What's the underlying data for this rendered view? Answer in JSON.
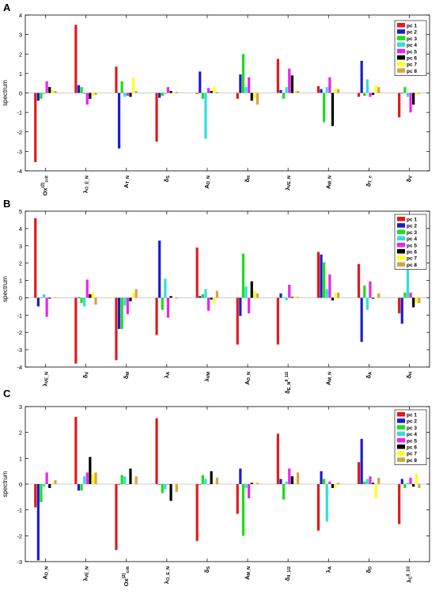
{
  "figure": {
    "panels": [
      "A",
      "B",
      "C"
    ],
    "ylabel": "spectrum"
  },
  "legend": {
    "entries": [
      "pc 1",
      "pc 2",
      "pc 3",
      "pc 4",
      "pc 5",
      "pc 6",
      "pc 7",
      "pc 8"
    ],
    "colors": [
      "#dd1c1c",
      "#1c1ccc",
      "#1cdd1c",
      "#33dddd",
      "#ee22ee",
      "#000000",
      "#ffff1c",
      "#d9a340"
    ]
  },
  "chart_data": [
    {
      "panel": "A",
      "type": "bar",
      "ylabel": "spectrum",
      "ylim": [
        -4,
        4
      ],
      "yticks": [
        -4,
        -3,
        -2,
        -1,
        0,
        1,
        2,
        3,
        4
      ],
      "grid": false,
      "legend_position": "top-right",
      "categories": [
        {
          "base": "Ox",
          "sub": "crit",
          "sup": "(2)"
        },
        {
          "base": "λ",
          "sub": "O_E_N"
        },
        {
          "base": "A",
          "sub": "T_N"
        },
        {
          "base": "δ",
          "sub": "S"
        },
        {
          "base": "A",
          "sub": "D_N"
        },
        {
          "base": "δ",
          "sub": "H"
        },
        {
          "base": "λ",
          "sub": "VE_N"
        },
        {
          "base": "A",
          "sub": "M_N"
        },
        {
          "base": "δ",
          "sub": "T_e"
        },
        {
          "base": "δ",
          "sub": "V"
        }
      ],
      "series": [
        {
          "name": "pc 1",
          "values": [
            -3.55,
            3.5,
            1.35,
            -2.5,
            -0.05,
            -0.3,
            1.75,
            0.35,
            -0.2,
            -1.25
          ]
        },
        {
          "name": "pc 2",
          "values": [
            -0.4,
            0.4,
            -2.85,
            -0.25,
            1.1,
            0.95,
            0.15,
            0.2,
            1.65,
            0.0
          ]
        },
        {
          "name": "pc 3",
          "values": [
            -0.3,
            0.3,
            0.6,
            -0.15,
            -0.3,
            2.0,
            -0.3,
            -1.5,
            -0.15,
            0.3
          ]
        },
        {
          "name": "pc 4",
          "values": [
            -0.05,
            -0.05,
            -0.2,
            -0.05,
            -2.35,
            0.3,
            0.3,
            0.3,
            0.7,
            -0.2
          ]
        },
        {
          "name": "pc 5",
          "values": [
            0.6,
            -0.6,
            -0.15,
            0.3,
            0.25,
            0.8,
            1.25,
            0.8,
            -0.2,
            -1.0
          ]
        },
        {
          "name": "pc 6",
          "values": [
            0.3,
            -0.3,
            -0.2,
            0.1,
            0.1,
            -0.4,
            0.9,
            -1.7,
            -0.1,
            -0.6
          ]
        },
        {
          "name": "pc 7",
          "values": [
            0.15,
            -0.15,
            0.8,
            0.05,
            0.35,
            -0.3,
            0.1,
            0.25,
            0.4,
            -0.1
          ]
        },
        {
          "name": "pc 8",
          "values": [
            0.1,
            -0.1,
            0.1,
            0.05,
            0.05,
            -0.6,
            0.1,
            0.2,
            0.3,
            -0.05
          ]
        }
      ]
    },
    {
      "panel": "B",
      "type": "bar",
      "ylabel": "spectrum",
      "ylim": [
        -4,
        5
      ],
      "yticks": [
        -4,
        -3,
        -2,
        -1,
        0,
        1,
        2,
        3,
        4,
        5
      ],
      "grid": false,
      "legend_position": "top-right",
      "categories": [
        {
          "base": "λ",
          "sub": "VE_N"
        },
        {
          "base": "δ",
          "sub": "V"
        },
        {
          "base": "δ",
          "sub": "M"
        },
        {
          "base": "λ",
          "sub": "A"
        },
        {
          "base": "λ",
          "sub": "VM"
        },
        {
          "base": "A",
          "sub": "D_N"
        },
        {
          "base": "δ",
          "sub": "E_N",
          "tail": "II_1/2"
        },
        {
          "base": "A",
          "sub": "M_N"
        },
        {
          "base": "δ",
          "sub": "A"
        },
        {
          "base": "δ",
          "sub": "H"
        }
      ],
      "series": [
        {
          "name": "pc 1",
          "values": [
            4.6,
            -3.8,
            -3.6,
            -2.15,
            2.9,
            -2.7,
            -2.7,
            2.65,
            1.95,
            -0.9
          ]
        },
        {
          "name": "pc 2",
          "values": [
            -0.5,
            0.0,
            -1.8,
            3.3,
            0.1,
            -1.05,
            0.25,
            2.5,
            -2.55,
            -1.5
          ]
        },
        {
          "name": "pc 3",
          "values": [
            0.0,
            -0.3,
            -1.8,
            -0.7,
            0.2,
            2.55,
            0.0,
            2.05,
            0.7,
            0.3
          ]
        },
        {
          "name": "pc 4",
          "values": [
            0.2,
            -0.5,
            -0.45,
            1.1,
            0.5,
            0.65,
            -0.15,
            0.5,
            -0.7,
            2.5
          ]
        },
        {
          "name": "pc 5",
          "values": [
            -1.1,
            1.05,
            -0.95,
            -1.15,
            -0.75,
            -0.9,
            0.75,
            1.35,
            0.95,
            0.3
          ]
        },
        {
          "name": "pc 6",
          "values": [
            -0.05,
            0.2,
            -0.2,
            0.1,
            -0.1,
            0.95,
            0.05,
            -0.15,
            -0.05,
            -0.55
          ]
        },
        {
          "name": "pc 7",
          "values": [
            0.0,
            0.35,
            0.3,
            -0.05,
            -0.3,
            0.4,
            0.1,
            0.3,
            0.05,
            -0.3
          ]
        },
        {
          "name": "pc 8",
          "values": [
            0.0,
            -0.4,
            0.5,
            -0.05,
            0.4,
            0.25,
            0.05,
            0.3,
            0.25,
            -0.3
          ]
        }
      ]
    },
    {
      "panel": "C",
      "type": "bar",
      "ylabel": "spectrum",
      "ylim": [
        -3,
        3
      ],
      "yticks": [
        -3,
        -2,
        -1,
        0,
        1,
        2,
        3
      ],
      "grid": false,
      "legend_position": "top-right",
      "categories": [
        {
          "base": "A",
          "sub": "D_N"
        },
        {
          "base": "λ",
          "sub": "VE_N"
        },
        {
          "base": "Ox",
          "sub": "crit",
          "sup": "(2)"
        },
        {
          "base": "λ",
          "sub": "O_E_N"
        },
        {
          "base": "δ",
          "sub": "S"
        },
        {
          "base": "A",
          "sub": "M_N"
        },
        {
          "base": "δ",
          "sub": "II_1/2"
        },
        {
          "base": "λ",
          "sub": "A"
        },
        {
          "base": "δ",
          "sub": "D"
        },
        {
          "base": "λ",
          "sub": "C",
          "tail": "II_1/2"
        }
      ],
      "series": [
        {
          "name": "pc 1",
          "values": [
            -0.9,
            2.6,
            -2.55,
            2.55,
            -2.2,
            -1.15,
            1.95,
            -1.8,
            0.85,
            -1.55
          ]
        },
        {
          "name": "pc 2",
          "values": [
            -2.95,
            -0.25,
            0.0,
            0.0,
            0.0,
            0.6,
            0.2,
            0.5,
            1.75,
            0.2
          ]
        },
        {
          "name": "pc 3",
          "values": [
            -0.7,
            -0.25,
            0.35,
            -0.35,
            0.35,
            -2.0,
            -0.6,
            0.2,
            0.1,
            -0.15
          ]
        },
        {
          "name": "pc 4",
          "values": [
            -0.1,
            0.3,
            0.3,
            -0.2,
            0.2,
            -0.15,
            0.1,
            -1.45,
            0.2,
            0.05
          ]
        },
        {
          "name": "pc 5",
          "values": [
            0.45,
            0.45,
            0.0,
            0.0,
            0.0,
            -0.55,
            0.6,
            0.1,
            0.3,
            0.25
          ]
        },
        {
          "name": "pc 6",
          "values": [
            -0.15,
            1.05,
            0.6,
            -0.65,
            0.5,
            0.05,
            0.3,
            -0.15,
            0.05,
            -0.1
          ]
        },
        {
          "name": "pc 7",
          "values": [
            0.05,
            0.4,
            0.0,
            0.0,
            0.0,
            0.05,
            0.05,
            -0.15,
            -0.55,
            0.4
          ]
        },
        {
          "name": "pc 8",
          "values": [
            0.15,
            0.45,
            0.3,
            -0.3,
            0.25,
            0.05,
            0.45,
            0.05,
            0.25,
            -0.15
          ]
        }
      ]
    }
  ]
}
